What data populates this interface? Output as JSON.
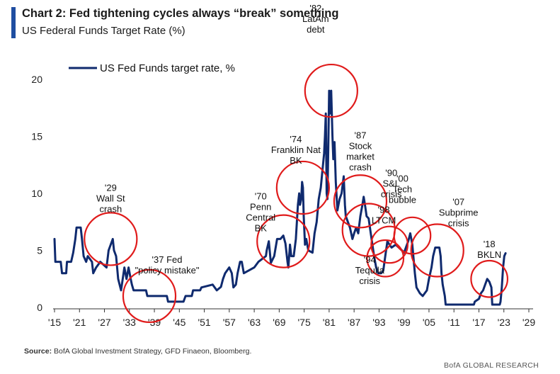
{
  "header": {
    "title": "Chart 2: Fed tightening cycles always “break” something",
    "subtitle": "US Federal Funds Target Rate (%)"
  },
  "footer": {
    "source_label": "Source:",
    "source_text": " BofA Global Investment Strategy, GFD Finaeon, Bloomberg.",
    "brand": "BofA GLOBAL RESEARCH"
  },
  "colors": {
    "line": "#0f2a6e",
    "circle": "#e01b1b",
    "accent": "#1f4ea1"
  },
  "chart_data": {
    "type": "line",
    "title": "",
    "xlabel": "",
    "ylabel": "",
    "xlim": [
      1915,
      2029
    ],
    "ylim": [
      0,
      20
    ],
    "grid": false,
    "legend_position": "top-left",
    "x_ticks": [
      {
        "value": 1915,
        "label": "'15"
      },
      {
        "value": 1921,
        "label": "'21"
      },
      {
        "value": 1927,
        "label": "'27"
      },
      {
        "value": 1933,
        "label": "'33"
      },
      {
        "value": 1939,
        "label": "'39"
      },
      {
        "value": 1945,
        "label": "'45"
      },
      {
        "value": 1951,
        "label": "'51"
      },
      {
        "value": 1957,
        "label": "'57"
      },
      {
        "value": 1963,
        "label": "'63"
      },
      {
        "value": 1969,
        "label": "'69"
      },
      {
        "value": 1975,
        "label": "'75"
      },
      {
        "value": 1981,
        "label": "'81"
      },
      {
        "value": 1987,
        "label": "'87"
      },
      {
        "value": 1993,
        "label": "'93"
      },
      {
        "value": 1999,
        "label": "'99"
      },
      {
        "value": 2005,
        "label": "'05"
      },
      {
        "value": 2011,
        "label": "'11"
      },
      {
        "value": 2017,
        "label": "'17"
      },
      {
        "value": 2023,
        "label": "'23"
      },
      {
        "value": 2029,
        "label": "'29"
      }
    ],
    "y_ticks": [
      {
        "value": 0,
        "label": "0"
      },
      {
        "value": 5,
        "label": "5"
      },
      {
        "value": 10,
        "label": "10"
      },
      {
        "value": 15,
        "label": "15"
      },
      {
        "value": 20,
        "label": "20"
      }
    ],
    "series": [
      {
        "name": "US Fed Funds target rate, %",
        "points": [
          [
            1915.0,
            6.0
          ],
          [
            1915.2,
            4.0
          ],
          [
            1916.5,
            4.0
          ],
          [
            1916.8,
            3.0
          ],
          [
            1917.8,
            3.0
          ],
          [
            1918.0,
            4.0
          ],
          [
            1919.0,
            4.0
          ],
          [
            1919.5,
            4.8
          ],
          [
            1920.0,
            6.0
          ],
          [
            1920.3,
            7.0
          ],
          [
            1921.3,
            7.0
          ],
          [
            1921.6,
            6.0
          ],
          [
            1922.0,
            4.5
          ],
          [
            1922.6,
            4.0
          ],
          [
            1923.0,
            4.5
          ],
          [
            1924.0,
            4.0
          ],
          [
            1924.3,
            3.0
          ],
          [
            1925.0,
            3.5
          ],
          [
            1926.0,
            4.0
          ],
          [
            1927.5,
            3.5
          ],
          [
            1928.0,
            5.0
          ],
          [
            1929.0,
            6.0
          ],
          [
            1929.3,
            5.0
          ],
          [
            1929.8,
            4.5
          ],
          [
            1930.3,
            2.5
          ],
          [
            1931.0,
            1.5
          ],
          [
            1931.8,
            3.5
          ],
          [
            1932.3,
            2.5
          ],
          [
            1932.8,
            3.5
          ],
          [
            1933.3,
            2.5
          ],
          [
            1933.6,
            2.0
          ],
          [
            1934.0,
            1.5
          ],
          [
            1937.0,
            1.5
          ],
          [
            1937.3,
            1.0
          ],
          [
            1940.0,
            1.0
          ],
          [
            1942.0,
            1.0
          ],
          [
            1942.3,
            0.5
          ],
          [
            1946.0,
            0.5
          ],
          [
            1946.5,
            1.0
          ],
          [
            1948.0,
            1.0
          ],
          [
            1948.3,
            1.5
          ],
          [
            1950.0,
            1.5
          ],
          [
            1950.3,
            1.75
          ],
          [
            1953.0,
            2.0
          ],
          [
            1954.0,
            1.5
          ],
          [
            1955.0,
            1.8
          ],
          [
            1955.5,
            2.5
          ],
          [
            1956.0,
            3.0
          ],
          [
            1957.0,
            3.5
          ],
          [
            1957.6,
            3.0
          ],
          [
            1958.0,
            1.75
          ],
          [
            1958.6,
            2.0
          ],
          [
            1959.0,
            3.0
          ],
          [
            1959.6,
            4.0
          ],
          [
            1960.0,
            4.0
          ],
          [
            1960.5,
            3.0
          ],
          [
            1963.0,
            3.5
          ],
          [
            1964.0,
            4.0
          ],
          [
            1965.8,
            4.5
          ],
          [
            1966.0,
            5.0
          ],
          [
            1966.5,
            5.8
          ],
          [
            1967.0,
            3.9
          ],
          [
            1967.8,
            4.5
          ],
          [
            1968.5,
            6.0
          ],
          [
            1969.3,
            6.0
          ],
          [
            1970.0,
            6.3
          ],
          [
            1970.5,
            5.6
          ],
          [
            1971.0,
            4.0
          ],
          [
            1971.2,
            3.5
          ],
          [
            1971.6,
            5.5
          ],
          [
            1971.9,
            4.5
          ],
          [
            1972.5,
            4.5
          ],
          [
            1973.0,
            6.0
          ],
          [
            1973.5,
            9.0
          ],
          [
            1973.8,
            10.0
          ],
          [
            1974.0,
            9.0
          ],
          [
            1974.3,
            9.5
          ],
          [
            1974.5,
            11.0
          ],
          [
            1974.7,
            10.5
          ],
          [
            1974.9,
            8.0
          ],
          [
            1975.2,
            5.5
          ],
          [
            1975.5,
            6.0
          ],
          [
            1976.0,
            5.0
          ],
          [
            1977.0,
            4.8
          ],
          [
            1977.5,
            6.5
          ],
          [
            1978.0,
            7.5
          ],
          [
            1978.5,
            9.5
          ],
          [
            1979.0,
            10.5
          ],
          [
            1979.8,
            13.5
          ],
          [
            1980.0,
            15.0
          ],
          [
            1980.2,
            17.0
          ],
          [
            1980.4,
            10.0
          ],
          [
            1980.6,
            9.5
          ],
          [
            1980.8,
            14.0
          ],
          [
            1981.0,
            19.0
          ],
          [
            1981.2,
            17.0
          ],
          [
            1981.5,
            19.0
          ],
          [
            1981.8,
            15.0
          ],
          [
            1982.0,
            13.0
          ],
          [
            1982.3,
            14.5
          ],
          [
            1982.6,
            11.0
          ],
          [
            1983.0,
            8.5
          ],
          [
            1983.5,
            9.5
          ],
          [
            1984.0,
            10.0
          ],
          [
            1984.5,
            11.5
          ],
          [
            1984.8,
            9.0
          ],
          [
            1985.0,
            8.0
          ],
          [
            1986.0,
            7.0
          ],
          [
            1986.6,
            6.0
          ],
          [
            1987.0,
            6.5
          ],
          [
            1987.5,
            7.0
          ],
          [
            1988.0,
            6.5
          ],
          [
            1988.5,
            8.0
          ],
          [
            1989.0,
            9.0
          ],
          [
            1989.3,
            9.7
          ],
          [
            1989.7,
            8.8
          ],
          [
            1990.0,
            8.0
          ],
          [
            1990.5,
            7.8
          ],
          [
            1991.0,
            6.5
          ],
          [
            1991.8,
            4.5
          ],
          [
            1992.3,
            3.5
          ],
          [
            1992.8,
            3.0
          ],
          [
            1993.5,
            3.0
          ],
          [
            1994.0,
            3.2
          ],
          [
            1994.5,
            4.5
          ],
          [
            1995.0,
            5.8
          ],
          [
            1995.5,
            5.5
          ],
          [
            1996.0,
            5.25
          ],
          [
            1997.0,
            5.5
          ],
          [
            1998.5,
            5.0
          ],
          [
            1999.0,
            4.8
          ],
          [
            1999.5,
            5.3
          ],
          [
            2000.0,
            5.8
          ],
          [
            2000.5,
            6.5
          ],
          [
            2001.0,
            5.5
          ],
          [
            2001.6,
            3.0
          ],
          [
            2002.0,
            1.75
          ],
          [
            2002.8,
            1.25
          ],
          [
            2003.5,
            1.0
          ],
          [
            2004.5,
            1.5
          ],
          [
            2005.0,
            2.5
          ],
          [
            2005.6,
            3.5
          ],
          [
            2006.0,
            4.5
          ],
          [
            2006.5,
            5.25
          ],
          [
            2007.5,
            5.25
          ],
          [
            2007.8,
            4.5
          ],
          [
            2008.0,
            3.0
          ],
          [
            2008.3,
            2.0
          ],
          [
            2008.8,
            1.0
          ],
          [
            2009.0,
            0.25
          ],
          [
            2015.8,
            0.25
          ],
          [
            2016.0,
            0.5
          ],
          [
            2017.0,
            0.75
          ],
          [
            2017.5,
            1.25
          ],
          [
            2018.0,
            1.5
          ],
          [
            2018.5,
            2.0
          ],
          [
            2019.0,
            2.5
          ],
          [
            2019.5,
            2.25
          ],
          [
            2020.0,
            1.75
          ],
          [
            2020.2,
            0.25
          ],
          [
            2022.0,
            0.25
          ],
          [
            2022.2,
            0.5
          ],
          [
            2022.5,
            1.75
          ],
          [
            2022.8,
            3.5
          ],
          [
            2023.1,
            4.5
          ],
          [
            2023.4,
            4.75
          ]
        ]
      }
    ],
    "annotations": [
      {
        "lines": [
          "'29",
          "Wall St",
          "crash"
        ],
        "x": 1928.5,
        "y": 6.0,
        "r": 2.3
      },
      {
        "lines": [
          "'37 Fed",
          "\"policy mistake\""
        ],
        "x": 1937.8,
        "y": 1.0,
        "r": 2.3
      },
      {
        "lines": [
          "'70",
          "Penn",
          "Central",
          "BK"
        ],
        "x": 1970.0,
        "y": 5.8,
        "r": 2.3
      },
      {
        "lines": [
          "'74",
          "Franklin Nat",
          "BK"
        ],
        "x": 1974.7,
        "y": 10.5,
        "r": 2.3
      },
      {
        "lines": [
          "'82",
          "LatAm",
          "debt"
        ],
        "x": 1981.5,
        "y": 19.0,
        "r": 2.3
      },
      {
        "lines": [
          "'87",
          "Stock",
          "market",
          "crash"
        ],
        "x": 1988.5,
        "y": 9.3,
        "r": 2.3
      },
      {
        "lines": [
          "'90",
          "S&L",
          "crisis"
        ],
        "x": 1990.5,
        "y": 6.8,
        "r": 2.3
      },
      {
        "lines": [
          "'94",
          "Tequila",
          "crisis"
        ],
        "x": 1994.5,
        "y": 4.3,
        "r": 1.6
      },
      {
        "lines": [
          "'98",
          "LTCM"
        ],
        "x": 1995.5,
        "y": 5.5,
        "r": 1.6
      },
      {
        "lines": [
          "'00",
          "Tech",
          "bubble"
        ],
        "x": 2001.0,
        "y": 6.3,
        "r": 1.6
      },
      {
        "lines": [
          "'07",
          "Subprime",
          "crisis"
        ],
        "x": 2007.0,
        "y": 5.0,
        "r": 2.3
      },
      {
        "lines": [
          "'18",
          "BKLN"
        ],
        "x": 2019.5,
        "y": 2.5,
        "r": 1.6
      }
    ]
  }
}
